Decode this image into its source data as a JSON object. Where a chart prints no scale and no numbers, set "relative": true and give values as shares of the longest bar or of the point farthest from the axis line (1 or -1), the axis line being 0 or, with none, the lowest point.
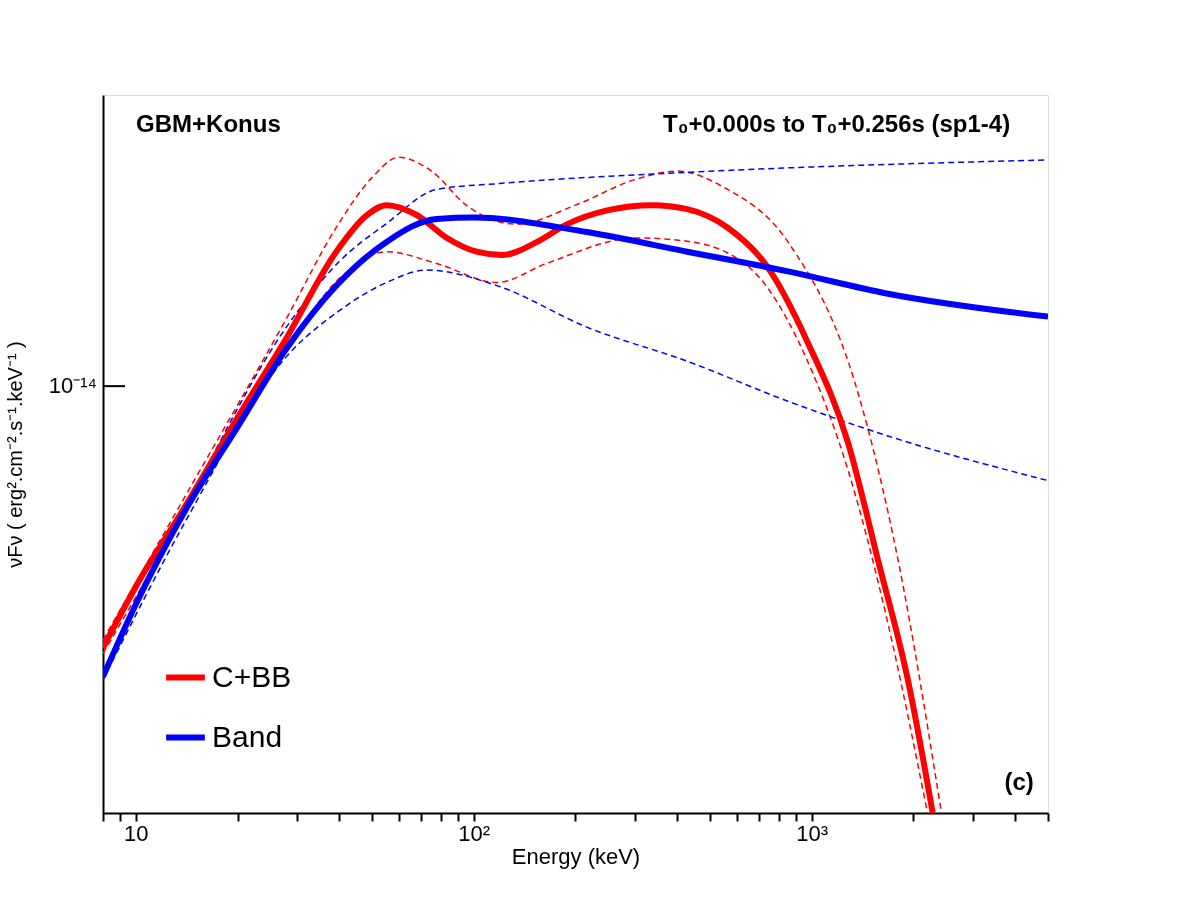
{
  "chart_data": {
    "type": "line",
    "xlabel": "Energy (keV)",
    "ylabel": "νFν ( erg².cm⁻².s⁻¹.keV⁻¹ )",
    "annotations": [
      "GBM+Konus",
      "T₀+0.000s to T₀+0.256s (sp1-4)",
      "(c)",
      "10⁻¹⁴"
    ],
    "relative": true,
    "log": "x",
    "grid": false,
    "legend": "bottom left",
    "marker": "none",
    "xlim": [
      8,
      5000
    ],
    "xticks": [
      {
        "value": 8,
        "label": null
      },
      {
        "value": 9,
        "label": null
      },
      10,
      {
        "value": 20,
        "label": null
      },
      {
        "value": 30,
        "label": null
      },
      {
        "value": 40,
        "label": null
      },
      {
        "value": 50,
        "label": null
      },
      {
        "value": 60,
        "label": null
      },
      {
        "value": 70,
        "label": null
      },
      {
        "value": 80,
        "label": null
      },
      {
        "value": 90,
        "label": null
      },
      {
        "value": 100,
        "label": "10²"
      },
      {
        "value": 200,
        "label": null
      },
      {
        "value": 300,
        "label": null
      },
      {
        "value": 400,
        "label": null
      },
      {
        "value": 500,
        "label": null
      },
      {
        "value": 600,
        "label": null
      },
      {
        "value": 700,
        "label": null
      },
      {
        "value": 800,
        "label": null
      },
      {
        "value": 900,
        "label": null
      },
      {
        "value": 1000,
        "label": "10³"
      },
      {
        "value": 2000,
        "label": null
      },
      {
        "value": 3000,
        "label": null
      },
      {
        "value": 4000,
        "label": null
      },
      {
        "value": 5000,
        "label": null
      }
    ],
    "series": [
      {
        "color": "#ff0000",
        "line_style": "dashed",
        "x": [
          8,
          14,
          27.9,
          39.2,
          50,
          60,
          75,
          95,
          134,
          200,
          300,
          400,
          550,
          850,
          1368,
          1800,
          2420
        ],
        "values": [
          0.264,
          0.483,
          0.754,
          0.893,
          0.969,
          1.0,
          0.979,
          0.927,
          0.898,
          0.927,
          0.966,
          0.979,
          0.954,
          0.871,
          0.642,
          0.386,
          0
        ]
      },
      {
        "color": "#ff0000",
        "line_style": "dashed",
        "x": [
          8,
          14,
          27.9,
          40,
          55.2,
          77.7,
          117,
          164,
          303,
          428,
          650,
          972,
          1280,
          1670,
          2200
        ],
        "values": [
          0.243,
          0.457,
          0.708,
          0.815,
          0.856,
          0.838,
          0.809,
          0.838,
          0.877,
          0.872,
          0.833,
          0.689,
          0.523,
          0.295,
          0
        ]
      },
      {
        "color": "#0000ff",
        "line_style": "dashed",
        "x": [
          8,
          14,
          27.9,
          40,
          55.2,
          77.7,
          119,
          428,
          5000
        ],
        "values": [
          0.214,
          0.464,
          0.741,
          0.841,
          0.899,
          0.951,
          0.96,
          0.977,
          0.996
        ]
      },
      {
        "color": "#0000ff",
        "line_style": "dashed",
        "x": [
          8,
          14,
          27.9,
          40,
          55.2,
          72.5,
          119,
          216,
          428,
          850,
          1680,
          5000
        ],
        "values": [
          0.203,
          0.444,
          0.696,
          0.766,
          0.809,
          0.828,
          0.803,
          0.741,
          0.689,
          0.628,
          0.575,
          0.507
        ]
      },
      {
        "name": "C+BB",
        "color": "#ff0000",
        "line_style": "solid",
        "x": [
          8,
          10,
          14.1,
          19.8,
          27.9,
          39.2,
          48.1,
          55.2,
          67.8,
          83.3,
          102,
          121,
          154,
          189,
          248,
          337,
          428,
          563,
          739,
          972,
          1280,
          1570,
          1925,
          2280
        ],
        "values": [
          0.252,
          0.345,
          0.47,
          0.599,
          0.724,
          0.856,
          0.911,
          0.927,
          0.912,
          0.877,
          0.856,
          0.851,
          0.871,
          0.898,
          0.919,
          0.927,
          0.921,
          0.893,
          0.833,
          0.718,
          0.565,
          0.386,
          0.203,
          0
        ]
      },
      {
        "name": "Band",
        "color": "#0000ff",
        "line_style": "solid",
        "x": [
          8,
          10,
          14.1,
          19.8,
          27.9,
          39.2,
          55.2,
          77.7,
          100,
          216,
          428,
          850,
          1680,
          5000
        ],
        "values": [
          0.208,
          0.318,
          0.464,
          0.585,
          0.708,
          0.804,
          0.871,
          0.906,
          0.908,
          0.886,
          0.856,
          0.826,
          0.792,
          0.757
        ]
      }
    ]
  }
}
